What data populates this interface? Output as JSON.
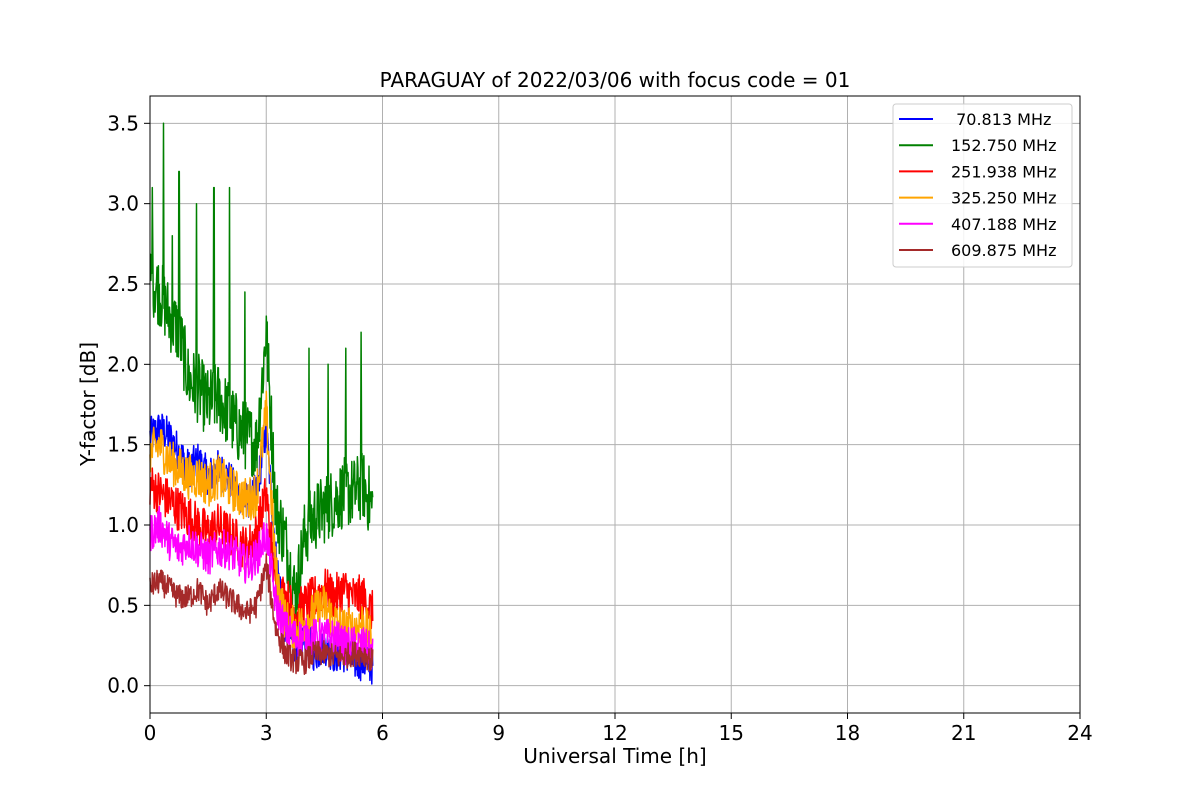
{
  "chart_data": {
    "type": "line",
    "title": "PARAGUAY of 2022/03/06 with focus code = 01",
    "xlabel": "Universal Time [h]",
    "ylabel": "Y-factor [dB]",
    "xlim": [
      0,
      24
    ],
    "ylim": [
      -0.17,
      3.67
    ],
    "xticks": [
      0,
      3,
      6,
      9,
      12,
      15,
      18,
      21,
      24
    ],
    "xtick_labels": [
      "0",
      "3",
      "6",
      "9",
      "12",
      "15",
      "18",
      "21",
      "24"
    ],
    "yticks": [
      0.0,
      0.5,
      1.0,
      1.5,
      2.0,
      2.5,
      3.0,
      3.5
    ],
    "ytick_labels": [
      "0.0",
      "0.5",
      "1.0",
      "1.5",
      "2.0",
      "2.5",
      "3.0",
      "3.5"
    ],
    "grid": true,
    "legend_position": "top-right",
    "x": [
      0.0,
      0.25,
      0.5,
      0.75,
      1.0,
      1.25,
      1.5,
      1.75,
      2.0,
      2.25,
      2.5,
      2.75,
      3.0,
      3.25,
      3.5,
      3.75,
      4.0,
      4.25,
      4.5,
      4.75,
      5.0,
      5.25,
      5.5,
      5.75
    ],
    "series": [
      {
        "name": " 70.813 MHz",
        "color": "#0000ff",
        "values": [
          1.55,
          1.6,
          1.55,
          1.45,
          1.35,
          1.4,
          1.3,
          1.35,
          1.3,
          1.2,
          1.15,
          1.2,
          1.6,
          0.8,
          0.35,
          0.25,
          0.3,
          0.2,
          0.25,
          0.2,
          0.2,
          0.15,
          0.15,
          0.12
        ]
      },
      {
        "name": "152.750 MHz",
        "color": "#008000",
        "values": [
          2.55,
          2.45,
          2.3,
          2.2,
          1.9,
          1.85,
          1.75,
          1.8,
          1.7,
          1.6,
          1.55,
          1.5,
          2.2,
          1.1,
          0.9,
          0.55,
          0.95,
          1.05,
          1.1,
          1.15,
          1.2,
          1.2,
          1.25,
          1.1
        ],
        "spikes": [
          [
            0.06,
            3.1
          ],
          [
            0.35,
            3.5
          ],
          [
            0.58,
            2.8
          ],
          [
            0.75,
            3.2
          ],
          [
            1.2,
            3.0
          ],
          [
            1.65,
            3.1
          ],
          [
            2.05,
            3.1
          ],
          [
            2.45,
            2.45
          ],
          [
            3.0,
            2.3
          ],
          [
            4.1,
            2.1
          ],
          [
            4.6,
            2.0
          ],
          [
            5.05,
            2.1
          ],
          [
            5.45,
            2.2
          ]
        ]
      },
      {
        "name": "251.938 MHz",
        "color": "#ff0000",
        "values": [
          1.25,
          1.2,
          1.15,
          1.1,
          1.05,
          1.0,
          0.95,
          1.0,
          0.95,
          0.9,
          0.85,
          0.95,
          1.2,
          0.6,
          0.55,
          0.45,
          0.5,
          0.55,
          0.6,
          0.55,
          0.6,
          0.55,
          0.55,
          0.45
        ]
      },
      {
        "name": "325.250 MHz",
        "color": "#ffa500",
        "values": [
          1.45,
          1.5,
          1.4,
          1.35,
          1.3,
          1.3,
          1.25,
          1.3,
          1.25,
          1.2,
          1.15,
          1.2,
          1.7,
          0.7,
          0.4,
          0.35,
          0.4,
          0.45,
          0.5,
          0.4,
          0.35,
          0.35,
          0.4,
          0.25
        ]
      },
      {
        "name": "407.188 MHz",
        "color": "#ff00ff",
        "values": [
          0.95,
          1.0,
          0.9,
          0.85,
          0.9,
          0.85,
          0.8,
          0.85,
          0.85,
          0.8,
          0.75,
          0.8,
          0.95,
          0.5,
          0.35,
          0.3,
          0.3,
          0.3,
          0.3,
          0.3,
          0.25,
          0.25,
          0.25,
          0.2
        ]
      },
      {
        "name": "609.875 MHz",
        "color": "#a52a2a",
        "values": [
          0.62,
          0.65,
          0.6,
          0.55,
          0.55,
          0.6,
          0.5,
          0.6,
          0.55,
          0.5,
          0.45,
          0.5,
          0.75,
          0.35,
          0.2,
          0.15,
          0.15,
          0.2,
          0.2,
          0.18,
          0.18,
          0.2,
          0.2,
          0.15
        ]
      }
    ]
  }
}
